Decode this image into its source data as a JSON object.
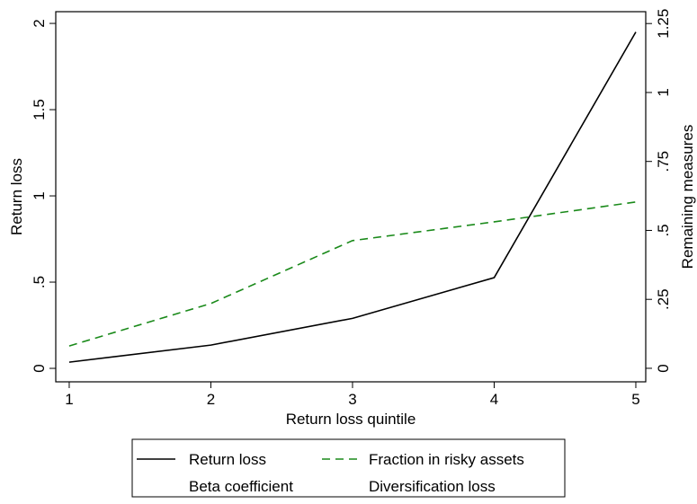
{
  "chart_data": {
    "type": "line",
    "x_label": "Return loss quintile",
    "y_label": "Return loss",
    "y2_label": "Remaining measures",
    "x": [
      1,
      2,
      3,
      4,
      5
    ],
    "xlim": [
      0.905,
      5.07
    ],
    "xticks": [
      1,
      2,
      3,
      4,
      5
    ],
    "ylim": [
      -0.078,
      2.068
    ],
    "yticks": [
      0,
      {
        "value": 0.5,
        "label": ".5"
      },
      1,
      {
        "value": 1.5,
        "label": "1.5"
      },
      2
    ],
    "y2lim": [
      -0.049,
      1.293
    ],
    "y2ticks": [
      0,
      {
        "value": 0.25,
        "label": ".25"
      },
      {
        "value": 0.5,
        "label": ".5"
      },
      {
        "value": 0.75,
        "label": ".75"
      },
      1,
      {
        "value": 1.25,
        "label": "1.25"
      }
    ],
    "series": [
      {
        "name": "Return loss",
        "color": "#000000",
        "dash": "solid",
        "values": [
          0.036,
          0.135,
          0.29,
          0.526,
          1.95
        ]
      },
      {
        "name": "Fraction in risky assets",
        "color": "#1a8a1a",
        "dash": "dashed",
        "axis": "y2",
        "values": [
          0.081,
          0.235,
          0.463,
          0.531,
          0.603
        ]
      },
      {
        "name": "Beta coefficient",
        "axis": "y2",
        "values": [
          null,
          null,
          null,
          null,
          null
        ]
      },
      {
        "name": "Diversification loss",
        "axis": "y2",
        "values": [
          null,
          null,
          null,
          null,
          null
        ]
      }
    ]
  }
}
